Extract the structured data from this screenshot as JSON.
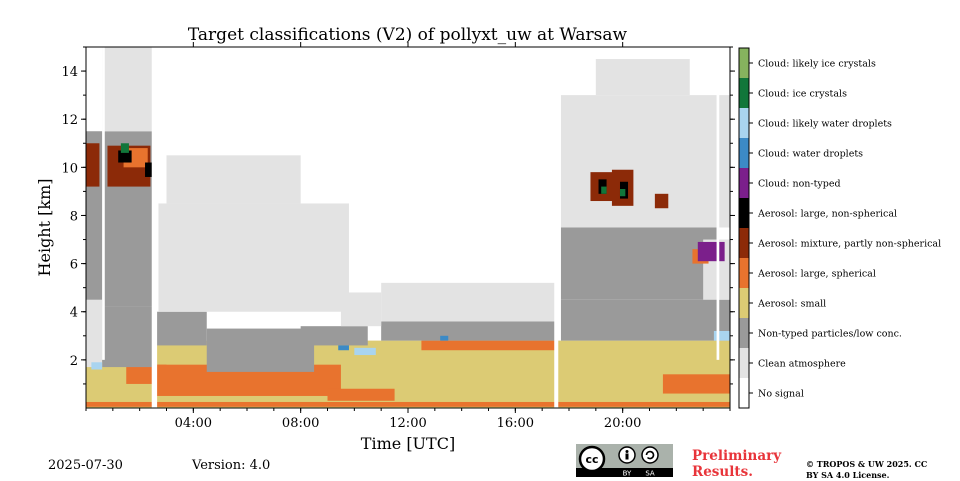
{
  "chart_data": {
    "type": "heatmap",
    "title": "Target classifications (V2) of pollyxt_uw at Warsaw",
    "xlabel": "Time [UTC]",
    "ylabel": "Height [km]",
    "xlim": [
      0,
      24
    ],
    "ylim": [
      0,
      15
    ],
    "x_ticks": [
      {
        "value": 4,
        "label": "04:00"
      },
      {
        "value": 8,
        "label": "08:00"
      },
      {
        "value": 12,
        "label": "12:00"
      },
      {
        "value": 16,
        "label": "16:00"
      },
      {
        "value": 20,
        "label": "20:00"
      }
    ],
    "y_ticks": [
      {
        "value": 2,
        "label": "2"
      },
      {
        "value": 4,
        "label": "4"
      },
      {
        "value": 6,
        "label": "6"
      },
      {
        "value": 8,
        "label": "8"
      },
      {
        "value": 10,
        "label": "10"
      },
      {
        "value": 12,
        "label": "12"
      },
      {
        "value": 14,
        "label": "14"
      }
    ],
    "classes": [
      {
        "label": "No signal",
        "color": "#ffffff"
      },
      {
        "label": "Clean atmosphere",
        "color": "#e3e3e3"
      },
      {
        "label": "Non-typed particles/low conc.",
        "color": "#9a9a9a"
      },
      {
        "label": "Aerosol: small",
        "color": "#dccb74"
      },
      {
        "label": "Aerosol: large, spherical",
        "color": "#e8732e"
      },
      {
        "label": "Aerosol: mixture, partly non-spherical",
        "color": "#8c2a08"
      },
      {
        "label": "Aerosol: large, non-spherical",
        "color": "#000000"
      },
      {
        "label": "Cloud: non-typed",
        "color": "#7b1f8b"
      },
      {
        "label": "Cloud: water droplets",
        "color": "#3c8ac6"
      },
      {
        "label": "Cloud: likely water droplets",
        "color": "#a9d4ef"
      },
      {
        "label": "Cloud: ice crystals",
        "color": "#11763a"
      },
      {
        "label": "Cloud: likely ice crystals",
        "color": "#86b35e"
      }
    ],
    "regions": [
      {
        "cls": 3,
        "x0": 0,
        "x1": 24,
        "y0": 0,
        "y1": 2.8
      },
      {
        "cls": 4,
        "x0": 0,
        "x1": 24,
        "y0": 0.05,
        "y1": 0.25
      },
      {
        "cls": 4,
        "x0": 2.5,
        "x1": 9.5,
        "y0": 0.5,
        "y1": 1.8
      },
      {
        "cls": 4,
        "x0": 1.5,
        "x1": 3.0,
        "y0": 1.0,
        "y1": 1.8
      },
      {
        "cls": 4,
        "x0": 9.0,
        "x1": 11.5,
        "y0": 0.3,
        "y1": 0.8
      },
      {
        "cls": 4,
        "x0": 12.5,
        "x1": 17.5,
        "y0": 2.4,
        "y1": 2.8
      },
      {
        "cls": 4,
        "x0": 21.5,
        "x1": 24,
        "y0": 0.6,
        "y1": 1.4
      },
      {
        "cls": 2,
        "x0": 0.6,
        "x1": 2.5,
        "y0": 1.7,
        "y1": 4.2
      },
      {
        "cls": 2,
        "x0": 2.5,
        "x1": 4.5,
        "y0": 2.6,
        "y1": 4.0
      },
      {
        "cls": 2,
        "x0": 4.5,
        "x1": 8.5,
        "y0": 1.5,
        "y1": 3.3
      },
      {
        "cls": 2,
        "x0": 8.0,
        "x1": 10.5,
        "y0": 2.6,
        "y1": 3.4
      },
      {
        "cls": 2,
        "x0": 11.0,
        "x1": 17.5,
        "y0": 2.8,
        "y1": 3.6
      },
      {
        "cls": 2,
        "x0": 17.7,
        "x1": 24,
        "y0": 2.8,
        "y1": 4.5
      },
      {
        "cls": 2,
        "x0": 0,
        "x1": 2.5,
        "y0": 4.2,
        "y1": 11.5
      },
      {
        "cls": 2,
        "x0": 17.7,
        "x1": 23.5,
        "y0": 4.5,
        "y1": 7.5
      },
      {
        "cls": 1,
        "x0": 0,
        "x1": 0.6,
        "y0": 1.7,
        "y1": 4.5
      },
      {
        "cls": 1,
        "x0": 2.7,
        "x1": 9.8,
        "y0": 4.0,
        "y1": 8.5
      },
      {
        "cls": 1,
        "x0": 3.0,
        "x1": 8.0,
        "y0": 8.5,
        "y1": 10.5
      },
      {
        "cls": 1,
        "x0": 9.5,
        "x1": 11.0,
        "y0": 3.4,
        "y1": 4.8
      },
      {
        "cls": 1,
        "x0": 11.0,
        "x1": 17.5,
        "y0": 3.6,
        "y1": 5.2
      },
      {
        "cls": 1,
        "x0": 17.7,
        "x1": 24,
        "y0": 7.5,
        "y1": 13.0
      },
      {
        "cls": 1,
        "x0": 0.6,
        "x1": 2.5,
        "y0": 11.5,
        "y1": 15.0
      },
      {
        "cls": 1,
        "x0": 19.0,
        "x1": 22.5,
        "y0": 13.0,
        "y1": 14.5
      },
      {
        "cls": 1,
        "x0": 23.0,
        "x1": 24,
        "y0": 4.5,
        "y1": 7.0
      },
      {
        "cls": 5,
        "x0": 0.8,
        "x1": 2.4,
        "y0": 9.2,
        "y1": 10.9
      },
      {
        "cls": 5,
        "x0": 0,
        "x1": 0.5,
        "y0": 9.2,
        "y1": 11.0
      },
      {
        "cls": 5,
        "x0": 18.8,
        "x1": 19.7,
        "y0": 8.6,
        "y1": 9.8
      },
      {
        "cls": 5,
        "x0": 19.6,
        "x1": 20.4,
        "y0": 8.4,
        "y1": 9.9
      },
      {
        "cls": 5,
        "x0": 21.2,
        "x1": 21.7,
        "y0": 8.3,
        "y1": 8.9
      },
      {
        "cls": 4,
        "x0": 1.4,
        "x1": 2.3,
        "y0": 10.0,
        "y1": 10.8
      },
      {
        "cls": 4,
        "x0": 22.6,
        "x1": 23.2,
        "y0": 6.0,
        "y1": 6.6
      },
      {
        "cls": 6,
        "x0": 1.2,
        "x1": 1.7,
        "y0": 10.2,
        "y1": 10.7
      },
      {
        "cls": 6,
        "x0": 2.2,
        "x1": 2.5,
        "y0": 9.6,
        "y1": 10.2
      },
      {
        "cls": 6,
        "x0": 19.1,
        "x1": 19.4,
        "y0": 8.9,
        "y1": 9.5
      },
      {
        "cls": 6,
        "x0": 19.9,
        "x1": 20.2,
        "y0": 8.7,
        "y1": 9.4
      },
      {
        "cls": 10,
        "x0": 1.3,
        "x1": 1.6,
        "y0": 10.6,
        "y1": 11.0
      },
      {
        "cls": 10,
        "x0": 19.2,
        "x1": 19.4,
        "y0": 8.9,
        "y1": 9.2
      },
      {
        "cls": 10,
        "x0": 19.9,
        "x1": 20.1,
        "y0": 8.8,
        "y1": 9.1
      },
      {
        "cls": 7,
        "x0": 22.8,
        "x1": 23.8,
        "y0": 6.1,
        "y1": 6.9
      },
      {
        "cls": 9,
        "x0": 0.2,
        "x1": 0.6,
        "y0": 1.6,
        "y1": 1.9
      },
      {
        "cls": 9,
        "x0": 10.0,
        "x1": 10.8,
        "y0": 2.2,
        "y1": 2.5
      },
      {
        "cls": 9,
        "x0": 23.4,
        "x1": 24,
        "y0": 2.8,
        "y1": 3.2
      },
      {
        "cls": 8,
        "x0": 9.4,
        "x1": 9.8,
        "y0": 2.4,
        "y1": 2.6
      },
      {
        "cls": 8,
        "x0": 13.2,
        "x1": 13.5,
        "y0": 2.8,
        "y1": 3.0
      },
      {
        "cls": 0,
        "x0": 2.45,
        "x1": 2.65,
        "y0": 0,
        "y1": 15
      },
      {
        "cls": 0,
        "x0": 17.45,
        "x1": 17.6,
        "y0": 0,
        "y1": 15
      },
      {
        "cls": 0,
        "x0": 23.5,
        "x1": 23.6,
        "y0": 2.0,
        "y1": 15
      },
      {
        "cls": 0,
        "x0": 0.6,
        "x1": 0.7,
        "y0": 2.0,
        "y1": 15
      }
    ]
  },
  "footer": {
    "date": "2025-07-30",
    "version": "Version: 4.0",
    "preliminary": "Preliminary Results.",
    "copyright": "© TROPOS & UW 2025. CC BY SA 4.0 License.",
    "cc_badge": {
      "cc": "cc",
      "by": "BY",
      "sa": "SA"
    }
  }
}
